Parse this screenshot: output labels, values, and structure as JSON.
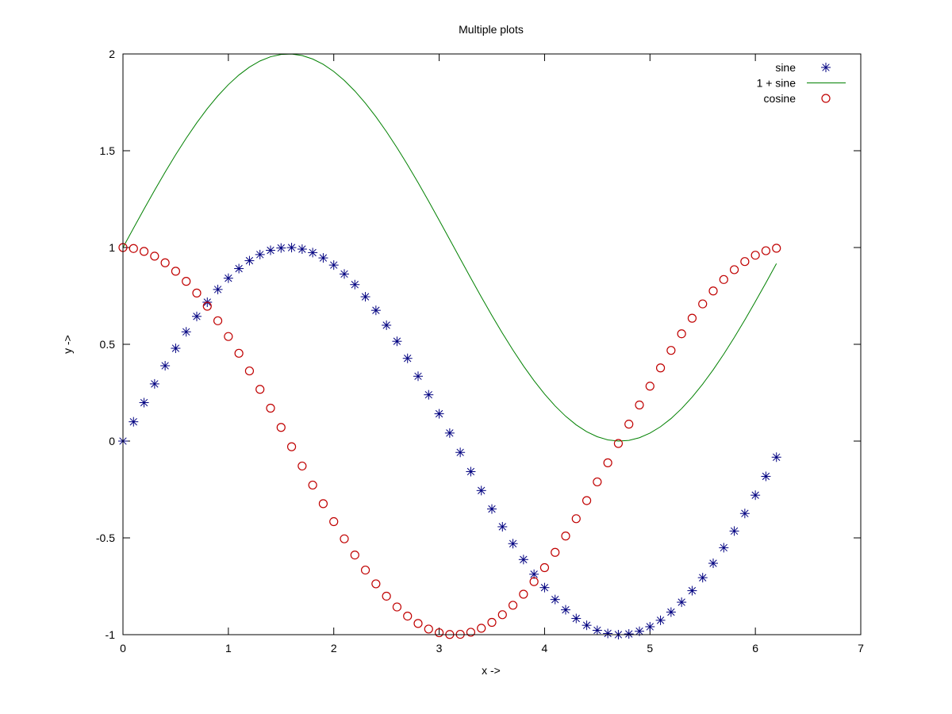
{
  "chart_data": {
    "type": "line",
    "title": "Multiple plots",
    "xlabel": "x ->",
    "ylabel": "y ->",
    "xlim": [
      0,
      7
    ],
    "ylim": [
      -1,
      2
    ],
    "xticks": [
      "0",
      "1",
      "2",
      "3",
      "4",
      "5",
      "6",
      "7"
    ],
    "yticks": [
      "-1",
      "-0.5",
      "0",
      "0.5",
      "1",
      "1.5",
      "2"
    ],
    "xtick_values": [
      0,
      1,
      2,
      3,
      4,
      5,
      6,
      7
    ],
    "ytick_values": [
      -1,
      -0.5,
      0,
      0.5,
      1,
      1.5,
      2
    ],
    "grid": false,
    "legend_position": "top-right",
    "x": [
      0.0,
      0.1,
      0.2,
      0.3,
      0.4,
      0.5,
      0.6,
      0.7,
      0.8,
      0.9,
      1.0,
      1.1,
      1.2,
      1.3,
      1.4,
      1.5,
      1.6,
      1.7,
      1.8,
      1.9,
      2.0,
      2.1,
      2.2,
      2.3,
      2.4,
      2.5,
      2.6,
      2.7,
      2.8,
      2.9,
      3.0,
      3.1,
      3.2,
      3.3,
      3.4,
      3.5,
      3.6,
      3.7,
      3.8,
      3.9,
      4.0,
      4.1,
      4.2,
      4.3,
      4.4,
      4.5,
      4.6,
      4.7,
      4.8,
      4.9,
      5.0,
      5.1,
      5.2,
      5.3,
      5.4,
      5.5,
      5.6,
      5.7,
      5.8,
      5.9,
      6.0,
      6.1,
      6.2
    ],
    "series": [
      {
        "name": "sine",
        "style": "points",
        "marker": "asterisk",
        "color": "#000080",
        "values": [
          0.0,
          0.0998,
          0.1987,
          0.2955,
          0.3894,
          0.4794,
          0.5646,
          0.6442,
          0.7174,
          0.7833,
          0.8415,
          0.8912,
          0.932,
          0.9636,
          0.9854,
          0.9975,
          0.9996,
          0.9917,
          0.9738,
          0.9463,
          0.9093,
          0.8632,
          0.8085,
          0.7457,
          0.6755,
          0.5985,
          0.5155,
          0.4274,
          0.335,
          0.2392,
          0.1411,
          0.0416,
          -0.0584,
          -0.1577,
          -0.2555,
          -0.3508,
          -0.4425,
          -0.5298,
          -0.6119,
          -0.6878,
          -0.7568,
          -0.8183,
          -0.8716,
          -0.9162,
          -0.9516,
          -0.9775,
          -0.9937,
          -0.9999,
          -0.9962,
          -0.9825,
          -0.9589,
          -0.9258,
          -0.8835,
          -0.8323,
          -0.7728,
          -0.7055,
          -0.6313,
          -0.5507,
          -0.4646,
          -0.3739,
          -0.2794,
          -0.1822,
          -0.0831
        ]
      },
      {
        "name": "1 + sine",
        "style": "line",
        "color": "#008000",
        "values": [
          1.0,
          1.0998,
          1.1987,
          1.2955,
          1.3894,
          1.4794,
          1.5646,
          1.6442,
          1.7174,
          1.7833,
          1.8415,
          1.8912,
          1.932,
          1.9636,
          1.9854,
          1.9975,
          1.9996,
          1.9917,
          1.9738,
          1.9463,
          1.9093,
          1.8632,
          1.8085,
          1.7457,
          1.6755,
          1.5985,
          1.5155,
          1.4274,
          1.335,
          1.2392,
          1.1411,
          1.0416,
          0.9416,
          0.8423,
          0.7445,
          0.6492,
          0.5575,
          0.4702,
          0.3881,
          0.3122,
          0.2432,
          0.1817,
          0.1284,
          0.0838,
          0.0484,
          0.0225,
          0.0063,
          0.0001,
          0.0038,
          0.0175,
          0.0411,
          0.0742,
          0.1165,
          0.1677,
          0.2272,
          0.2945,
          0.3687,
          0.4493,
          0.5354,
          0.6261,
          0.7206,
          0.8178,
          0.9169
        ]
      },
      {
        "name": "cosine",
        "style": "points",
        "marker": "circle",
        "color": "#c00000",
        "values": [
          1.0,
          0.995,
          0.9801,
          0.9553,
          0.9211,
          0.8776,
          0.8253,
          0.7648,
          0.6967,
          0.6216,
          0.5403,
          0.4536,
          0.3624,
          0.2675,
          0.17,
          0.0707,
          -0.0292,
          -0.1288,
          -0.2272,
          -0.3233,
          -0.4161,
          -0.5048,
          -0.5885,
          -0.6663,
          -0.7374,
          -0.8011,
          -0.8569,
          -0.9041,
          -0.9422,
          -0.971,
          -0.99,
          -0.9991,
          -0.9983,
          -0.9875,
          -0.9668,
          -0.9365,
          -0.8968,
          -0.8481,
          -0.791,
          -0.7259,
          -0.6536,
          -0.5748,
          -0.4903,
          -0.4008,
          -0.3073,
          -0.2108,
          -0.1122,
          -0.0124,
          0.0875,
          0.1865,
          0.2837,
          0.378,
          0.4685,
          0.5544,
          0.6347,
          0.7087,
          0.7756,
          0.8347,
          0.8855,
          0.9275,
          0.9602,
          0.9833,
          0.9965
        ]
      }
    ]
  }
}
